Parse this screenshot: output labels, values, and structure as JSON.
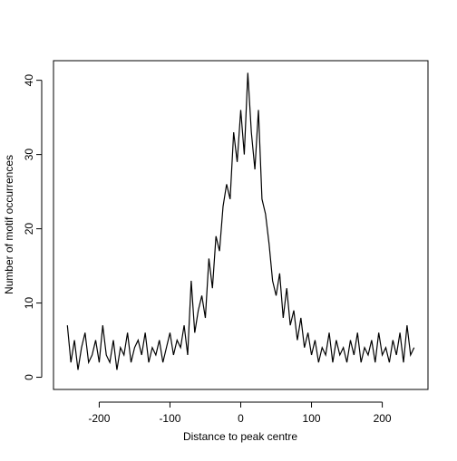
{
  "chart_data": {
    "type": "line",
    "xlabel": "Distance to peak centre",
    "ylabel": "Number of motif occurrences",
    "x": [
      -245,
      -240,
      -235,
      -230,
      -225,
      -220,
      -215,
      -210,
      -205,
      -200,
      -195,
      -190,
      -185,
      -180,
      -175,
      -170,
      -165,
      -160,
      -155,
      -150,
      -145,
      -140,
      -135,
      -130,
      -125,
      -120,
      -115,
      -110,
      -105,
      -100,
      -95,
      -90,
      -85,
      -80,
      -75,
      -70,
      -65,
      -60,
      -55,
      -50,
      -45,
      -40,
      -35,
      -30,
      -25,
      -20,
      -15,
      -10,
      -5,
      0,
      5,
      10,
      15,
      20,
      25,
      30,
      35,
      40,
      45,
      50,
      55,
      60,
      65,
      70,
      75,
      80,
      85,
      90,
      95,
      100,
      105,
      110,
      115,
      120,
      125,
      130,
      135,
      140,
      145,
      150,
      155,
      160,
      165,
      170,
      175,
      180,
      185,
      190,
      195,
      200,
      205,
      210,
      215,
      220,
      225,
      230,
      235,
      240,
      245
    ],
    "series": [
      {
        "color": "#000000",
        "values": [
          7,
          2,
          5,
          1,
          4,
          6,
          2,
          3,
          5,
          2,
          7,
          3,
          2,
          5,
          1,
          4,
          3,
          6,
          2,
          4,
          5,
          3,
          6,
          2,
          4,
          3,
          5,
          2,
          4,
          6,
          3,
          5,
          4,
          7,
          3,
          13,
          6,
          9,
          11,
          8,
          16,
          12,
          19,
          17,
          23,
          26,
          24,
          33,
          29,
          36,
          30,
          41,
          33,
          28,
          36,
          24,
          22,
          18,
          13,
          11,
          14,
          8,
          12,
          7,
          9,
          5,
          8,
          4,
          6,
          3,
          5,
          2,
          4,
          3,
          6,
          2,
          5,
          3,
          4,
          2,
          5,
          3,
          6,
          2,
          4,
          3,
          5,
          2,
          6,
          3,
          4,
          2,
          5,
          3,
          6,
          2,
          7,
          3,
          4
        ]
      }
    ],
    "xlim": [
      -264.6,
      264.6
    ],
    "ylim": [
      -1.64,
      42.64
    ],
    "xticks": [
      -200,
      -100,
      0,
      100,
      200
    ],
    "yticks": [
      0,
      10,
      20,
      30,
      40
    ]
  }
}
